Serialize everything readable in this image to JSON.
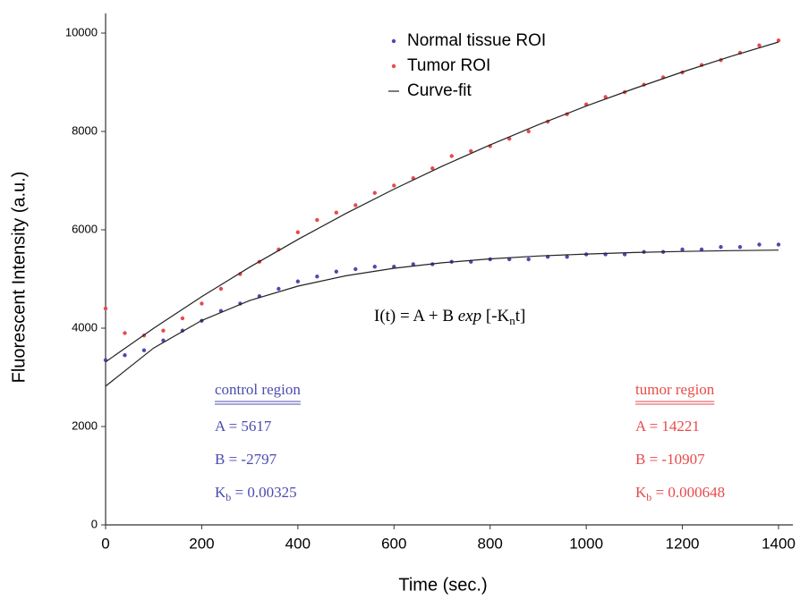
{
  "chart_data": {
    "type": "scatter",
    "x_label": "Time (sec.)",
    "y_label": "Fluorescent Intensity (a.u.)",
    "xlim": [
      0,
      1430
    ],
    "ylim": [
      0,
      10400
    ],
    "xticks": [
      0,
      200,
      400,
      600,
      800,
      1000,
      1200,
      1400
    ],
    "yticks": [
      0,
      2000,
      4000,
      6000,
      8000,
      10000
    ],
    "x": [
      0,
      40,
      80,
      120,
      160,
      200,
      240,
      280,
      320,
      360,
      400,
      440,
      480,
      520,
      560,
      600,
      640,
      680,
      720,
      760,
      800,
      840,
      880,
      920,
      960,
      1000,
      1040,
      1080,
      1120,
      1160,
      1200,
      1240,
      1280,
      1320,
      1360,
      1400
    ],
    "series": [
      {
        "name": "Normal tissue ROI",
        "color": "#4b4bb0",
        "values": [
          3350,
          3450,
          3550,
          3750,
          3950,
          4150,
          4350,
          4500,
          4650,
          4800,
          4950,
          5050,
          5150,
          5200,
          5250,
          5250,
          5300,
          5300,
          5350,
          5350,
          5400,
          5400,
          5400,
          5450,
          5450,
          5500,
          5500,
          5500,
          5550,
          5550,
          5600,
          5600,
          5650,
          5650,
          5700,
          5700
        ]
      },
      {
        "name": "Tumor ROI",
        "color": "#e84a4a",
        "values": [
          4400,
          3900,
          3850,
          3950,
          4200,
          4500,
          4800,
          5100,
          5350,
          5600,
          5950,
          6200,
          6350,
          6500,
          6750,
          6900,
          7050,
          7250,
          7500,
          7600,
          7700,
          7850,
          8000,
          8200,
          8350,
          8550,
          8700,
          8800,
          8950,
          9100,
          9200,
          9350,
          9450,
          9600,
          9750,
          9850
        ]
      }
    ],
    "fit": {
      "name": "Curve-fit",
      "color": "#222222",
      "x": [
        0,
        100,
        200,
        300,
        400,
        500,
        600,
        700,
        800,
        900,
        1000,
        1100,
        1200,
        1300,
        1400
      ],
      "curves": [
        {
          "values": [
            2820,
            3596,
            4157,
            4562,
            4855,
            5066,
            5219,
            5329,
            5409,
            5467,
            5508,
            5539,
            5560,
            5576,
            5587
          ]
        },
        {
          "values": [
            3314,
            3998,
            4640,
            5241,
            5804,
            6332,
            6827,
            7292,
            7726,
            8134,
            8516,
            8873,
            9209,
            9523,
            9819
          ]
        }
      ]
    },
    "equation": {
      "lhs": "I(t) = A + B ",
      "func": "exp",
      "arg": " [-K",
      "sub": "n",
      "end": "t]"
    },
    "regions": [
      {
        "title": "control region",
        "color": "#4b4bb0",
        "lines": [
          {
            "label": "A",
            "text": " = 5617"
          },
          {
            "label": "B",
            "text": " = -2797"
          },
          {
            "label": "K",
            "sub": "b",
            "text": " = 0.00325"
          }
        ]
      },
      {
        "title": "tumor region",
        "color": "#e84a4a",
        "lines": [
          {
            "label": "A",
            "text": " = 14221"
          },
          {
            "label": "B",
            "text": " = -10907"
          },
          {
            "label": "K",
            "sub": "b",
            "text": " = 0.000648"
          }
        ]
      }
    ]
  }
}
